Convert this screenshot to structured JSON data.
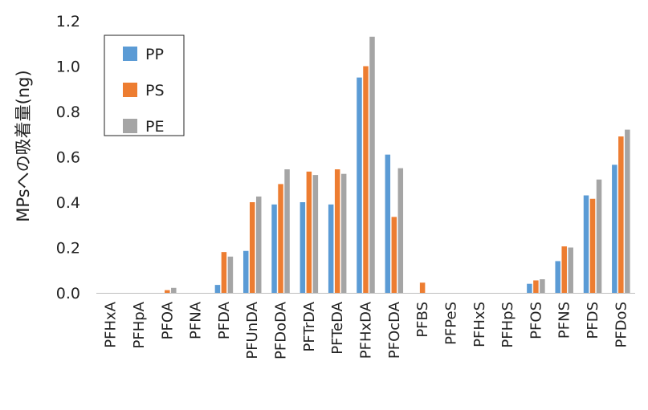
{
  "chart_data": {
    "type": "bar",
    "ylabel": "MPsへの吸着量(ng)",
    "xlabel": "",
    "ylim": [
      0,
      1.2
    ],
    "yticks": [
      "0.0",
      "0.2",
      "0.4",
      "0.6",
      "0.8",
      "1.0",
      "1.2"
    ],
    "grid": false,
    "legend_position": "top-left",
    "categories": [
      "PFHxA",
      "PFHpA",
      "PFOA",
      "PFNA",
      "PFDA",
      "PFUnDA",
      "PFDoDA",
      "PFTrDA",
      "PFTeDA",
      "PFHxDA",
      "PFOcDA",
      "PFBS",
      "PFPeS",
      "PFHxS",
      "PFHpS",
      "PFOS",
      "PFNS",
      "PFDS",
      "PFDoS"
    ],
    "series": [
      {
        "name": "PP",
        "color": "#5b9bd5",
        "values": [
          0,
          0,
          0,
          0,
          0.035,
          0.185,
          0.39,
          0.4,
          0.39,
          0.95,
          0.61,
          0,
          0,
          0,
          0,
          0.04,
          0.14,
          0.43,
          0.565
        ]
      },
      {
        "name": "PS",
        "color": "#ed7d31",
        "values": [
          0,
          0,
          0.012,
          0,
          0.18,
          0.4,
          0.48,
          0.535,
          0.545,
          1.0,
          0.335,
          0.045,
          0,
          0,
          0,
          0.055,
          0.205,
          0.415,
          0.69
        ]
      },
      {
        "name": "PE",
        "color": "#a5a5a5",
        "values": [
          0,
          0,
          0.022,
          0,
          0.16,
          0.425,
          0.545,
          0.52,
          0.525,
          1.13,
          0.55,
          0,
          0,
          0,
          0,
          0.06,
          0.2,
          0.5,
          0.72
        ]
      }
    ]
  }
}
